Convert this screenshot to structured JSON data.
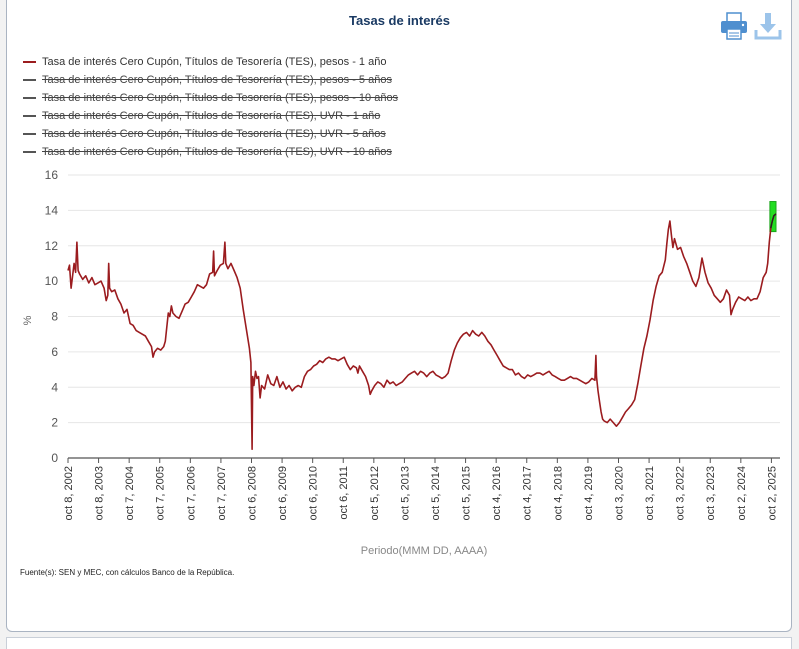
{
  "title": "Tasas de interés",
  "toolbar": {
    "print_icon": "printer-icon",
    "download_icon": "download-icon"
  },
  "source": "Fuente(s): SEN y MEC, con cálculos Banco de la República.",
  "chart_data": {
    "type": "line",
    "ylabel": "%",
    "xlabel": "Periodo(MMM DD, AAAA)",
    "ylim": [
      0,
      16
    ],
    "yticks": [
      0,
      2,
      4,
      6,
      8,
      10,
      12,
      14,
      16
    ],
    "grid": true,
    "legend_position": "top-left",
    "xlim": [
      2002.77,
      2025.92
    ],
    "x_ticks": [
      {
        "x": 2002.77,
        "label": "oct 8, 2002"
      },
      {
        "x": 2003.77,
        "label": "oct 8, 2003"
      },
      {
        "x": 2004.77,
        "label": "oct 7, 2004"
      },
      {
        "x": 2005.77,
        "label": "oct 7, 2005"
      },
      {
        "x": 2006.77,
        "label": "oct 7, 2006"
      },
      {
        "x": 2007.77,
        "label": "oct 7, 2007"
      },
      {
        "x": 2008.77,
        "label": "oct 6, 2008"
      },
      {
        "x": 2009.77,
        "label": "oct 6, 2009"
      },
      {
        "x": 2010.77,
        "label": "oct 6, 2010"
      },
      {
        "x": 2011.77,
        "label": "oct 6, 2011"
      },
      {
        "x": 2012.77,
        "label": "oct 5, 2012"
      },
      {
        "x": 2013.77,
        "label": "oct 5, 2013"
      },
      {
        "x": 2014.77,
        "label": "oct 5, 2014"
      },
      {
        "x": 2015.77,
        "label": "oct 5, 2015"
      },
      {
        "x": 2016.77,
        "label": "oct 4, 2016"
      },
      {
        "x": 2017.77,
        "label": "oct 4, 2017"
      },
      {
        "x": 2018.77,
        "label": "oct 4, 2018"
      },
      {
        "x": 2019.77,
        "label": "oct 4, 2019"
      },
      {
        "x": 2020.77,
        "label": "oct 3, 2020"
      },
      {
        "x": 2021.77,
        "label": "oct 3, 2021"
      },
      {
        "x": 2022.77,
        "label": "oct 3, 2022"
      },
      {
        "x": 2023.77,
        "label": "oct 3, 2023"
      },
      {
        "x": 2024.77,
        "label": "oct 2, 2024"
      },
      {
        "x": 2025.77,
        "label": "oct 2, 2025"
      }
    ],
    "series": [
      {
        "name": "Tasa de interés Cero Cupón, Títulos de Tesorería (TES), pesos - 1 año",
        "color": "#9b1c1f",
        "visible": true,
        "points": [
          [
            2002.77,
            10.6
          ],
          [
            2002.82,
            10.9
          ],
          [
            2002.87,
            9.6
          ],
          [
            2002.92,
            10.3
          ],
          [
            2002.97,
            11.0
          ],
          [
            2003.02,
            10.5
          ],
          [
            2003.06,
            12.2
          ],
          [
            2003.1,
            10.6
          ],
          [
            2003.15,
            10.4
          ],
          [
            2003.25,
            10.1
          ],
          [
            2003.35,
            10.3
          ],
          [
            2003.45,
            9.9
          ],
          [
            2003.55,
            10.2
          ],
          [
            2003.65,
            9.8
          ],
          [
            2003.75,
            9.9
          ],
          [
            2003.85,
            10.0
          ],
          [
            2003.95,
            9.6
          ],
          [
            2004.02,
            8.9
          ],
          [
            2004.07,
            9.2
          ],
          [
            2004.1,
            11.0
          ],
          [
            2004.13,
            9.6
          ],
          [
            2004.2,
            9.4
          ],
          [
            2004.3,
            9.5
          ],
          [
            2004.4,
            9.0
          ],
          [
            2004.5,
            8.7
          ],
          [
            2004.6,
            8.2
          ],
          [
            2004.7,
            8.4
          ],
          [
            2004.8,
            7.6
          ],
          [
            2004.9,
            7.5
          ],
          [
            2005.0,
            7.2
          ],
          [
            2005.1,
            7.1
          ],
          [
            2005.2,
            7.0
          ],
          [
            2005.3,
            6.9
          ],
          [
            2005.4,
            6.6
          ],
          [
            2005.5,
            6.3
          ],
          [
            2005.55,
            5.7
          ],
          [
            2005.6,
            6.0
          ],
          [
            2005.7,
            6.2
          ],
          [
            2005.8,
            6.1
          ],
          [
            2005.9,
            6.3
          ],
          [
            2005.95,
            6.6
          ],
          [
            2006.0,
            7.4
          ],
          [
            2006.05,
            8.2
          ],
          [
            2006.1,
            8.0
          ],
          [
            2006.15,
            8.6
          ],
          [
            2006.2,
            8.2
          ],
          [
            2006.3,
            8.0
          ],
          [
            2006.4,
            7.9
          ],
          [
            2006.5,
            8.3
          ],
          [
            2006.6,
            8.7
          ],
          [
            2006.7,
            8.8
          ],
          [
            2006.8,
            9.1
          ],
          [
            2006.9,
            9.4
          ],
          [
            2007.0,
            9.8
          ],
          [
            2007.1,
            9.7
          ],
          [
            2007.2,
            9.6
          ],
          [
            2007.3,
            9.8
          ],
          [
            2007.4,
            10.4
          ],
          [
            2007.5,
            10.5
          ],
          [
            2007.53,
            11.7
          ],
          [
            2007.56,
            10.3
          ],
          [
            2007.65,
            10.6
          ],
          [
            2007.75,
            10.9
          ],
          [
            2007.85,
            11.0
          ],
          [
            2007.9,
            12.2
          ],
          [
            2007.93,
            11.0
          ],
          [
            2008.0,
            10.7
          ],
          [
            2008.1,
            11.0
          ],
          [
            2008.2,
            10.6
          ],
          [
            2008.3,
            10.2
          ],
          [
            2008.4,
            9.6
          ],
          [
            2008.5,
            8.4
          ],
          [
            2008.6,
            7.3
          ],
          [
            2008.7,
            6.2
          ],
          [
            2008.75,
            5.4
          ],
          [
            2008.79,
            0.5
          ],
          [
            2008.81,
            4.6
          ],
          [
            2008.85,
            4.1
          ],
          [
            2008.9,
            4.9
          ],
          [
            2008.95,
            4.5
          ],
          [
            2009.0,
            4.6
          ],
          [
            2009.05,
            3.4
          ],
          [
            2009.1,
            4.1
          ],
          [
            2009.2,
            3.9
          ],
          [
            2009.3,
            4.7
          ],
          [
            2009.4,
            4.2
          ],
          [
            2009.5,
            4.1
          ],
          [
            2009.6,
            4.6
          ],
          [
            2009.7,
            4.0
          ],
          [
            2009.8,
            4.3
          ],
          [
            2009.9,
            3.9
          ],
          [
            2010.0,
            4.1
          ],
          [
            2010.1,
            3.8
          ],
          [
            2010.2,
            4.0
          ],
          [
            2010.3,
            4.1
          ],
          [
            2010.4,
            4.0
          ],
          [
            2010.5,
            4.6
          ],
          [
            2010.6,
            4.9
          ],
          [
            2010.7,
            5.0
          ],
          [
            2010.8,
            5.2
          ],
          [
            2010.9,
            5.3
          ],
          [
            2011.0,
            5.5
          ],
          [
            2011.1,
            5.4
          ],
          [
            2011.2,
            5.6
          ],
          [
            2011.3,
            5.7
          ],
          [
            2011.4,
            5.6
          ],
          [
            2011.5,
            5.6
          ],
          [
            2011.6,
            5.5
          ],
          [
            2011.7,
            5.6
          ],
          [
            2011.8,
            5.7
          ],
          [
            2011.9,
            5.3
          ],
          [
            2012.0,
            5.0
          ],
          [
            2012.1,
            5.2
          ],
          [
            2012.2,
            5.1
          ],
          [
            2012.25,
            4.8
          ],
          [
            2012.3,
            5.2
          ],
          [
            2012.4,
            4.9
          ],
          [
            2012.5,
            4.6
          ],
          [
            2012.6,
            4.1
          ],
          [
            2012.65,
            3.6
          ],
          [
            2012.7,
            3.8
          ],
          [
            2012.8,
            4.1
          ],
          [
            2012.9,
            4.3
          ],
          [
            2013.0,
            4.2
          ],
          [
            2013.1,
            4.0
          ],
          [
            2013.2,
            4.4
          ],
          [
            2013.3,
            4.2
          ],
          [
            2013.4,
            4.3
          ],
          [
            2013.5,
            4.1
          ],
          [
            2013.6,
            4.2
          ],
          [
            2013.7,
            4.3
          ],
          [
            2013.8,
            4.5
          ],
          [
            2013.9,
            4.7
          ],
          [
            2014.0,
            4.8
          ],
          [
            2014.1,
            4.9
          ],
          [
            2014.2,
            4.7
          ],
          [
            2014.3,
            4.9
          ],
          [
            2014.4,
            4.8
          ],
          [
            2014.5,
            4.6
          ],
          [
            2014.6,
            4.8
          ],
          [
            2014.7,
            4.9
          ],
          [
            2014.8,
            4.7
          ],
          [
            2014.9,
            4.6
          ],
          [
            2015.0,
            4.5
          ],
          [
            2015.1,
            4.6
          ],
          [
            2015.2,
            4.8
          ],
          [
            2015.3,
            5.5
          ],
          [
            2015.4,
            6.1
          ],
          [
            2015.5,
            6.5
          ],
          [
            2015.6,
            6.8
          ],
          [
            2015.7,
            7.0
          ],
          [
            2015.8,
            7.1
          ],
          [
            2015.9,
            6.9
          ],
          [
            2016.0,
            7.2
          ],
          [
            2016.1,
            7.0
          ],
          [
            2016.2,
            6.9
          ],
          [
            2016.3,
            7.1
          ],
          [
            2016.4,
            6.9
          ],
          [
            2016.5,
            6.6
          ],
          [
            2016.6,
            6.4
          ],
          [
            2016.7,
            6.1
          ],
          [
            2016.8,
            5.8
          ],
          [
            2016.9,
            5.5
          ],
          [
            2017.0,
            5.2
          ],
          [
            2017.1,
            5.1
          ],
          [
            2017.2,
            5.0
          ],
          [
            2017.3,
            5.0
          ],
          [
            2017.4,
            4.7
          ],
          [
            2017.5,
            4.8
          ],
          [
            2017.6,
            4.6
          ],
          [
            2017.7,
            4.5
          ],
          [
            2017.8,
            4.7
          ],
          [
            2017.9,
            4.6
          ],
          [
            2018.0,
            4.7
          ],
          [
            2018.1,
            4.8
          ],
          [
            2018.2,
            4.8
          ],
          [
            2018.3,
            4.7
          ],
          [
            2018.4,
            4.8
          ],
          [
            2018.5,
            4.9
          ],
          [
            2018.6,
            4.7
          ],
          [
            2018.7,
            4.6
          ],
          [
            2018.8,
            4.5
          ],
          [
            2018.9,
            4.4
          ],
          [
            2019.0,
            4.4
          ],
          [
            2019.1,
            4.5
          ],
          [
            2019.2,
            4.6
          ],
          [
            2019.3,
            4.5
          ],
          [
            2019.4,
            4.5
          ],
          [
            2019.5,
            4.4
          ],
          [
            2019.6,
            4.3
          ],
          [
            2019.7,
            4.2
          ],
          [
            2019.8,
            4.3
          ],
          [
            2019.9,
            4.5
          ],
          [
            2020.0,
            4.4
          ],
          [
            2020.03,
            5.8
          ],
          [
            2020.05,
            4.6
          ],
          [
            2020.1,
            3.8
          ],
          [
            2020.15,
            3.2
          ],
          [
            2020.2,
            2.6
          ],
          [
            2020.25,
            2.2
          ],
          [
            2020.3,
            2.1
          ],
          [
            2020.4,
            2.0
          ],
          [
            2020.5,
            2.2
          ],
          [
            2020.6,
            2.0
          ],
          [
            2020.7,
            1.8
          ],
          [
            2020.8,
            2.0
          ],
          [
            2020.9,
            2.3
          ],
          [
            2021.0,
            2.6
          ],
          [
            2021.1,
            2.8
          ],
          [
            2021.2,
            3.0
          ],
          [
            2021.3,
            3.3
          ],
          [
            2021.4,
            4.2
          ],
          [
            2021.5,
            5.2
          ],
          [
            2021.6,
            6.2
          ],
          [
            2021.7,
            6.9
          ],
          [
            2021.8,
            7.8
          ],
          [
            2021.9,
            8.9
          ],
          [
            2022.0,
            9.7
          ],
          [
            2022.1,
            10.3
          ],
          [
            2022.2,
            10.5
          ],
          [
            2022.3,
            11.2
          ],
          [
            2022.35,
            12.1
          ],
          [
            2022.4,
            12.9
          ],
          [
            2022.45,
            13.4
          ],
          [
            2022.5,
            12.6
          ],
          [
            2022.55,
            11.9
          ],
          [
            2022.6,
            12.4
          ],
          [
            2022.7,
            11.8
          ],
          [
            2022.8,
            11.9
          ],
          [
            2022.9,
            11.4
          ],
          [
            2023.0,
            11.0
          ],
          [
            2023.1,
            10.5
          ],
          [
            2023.2,
            10.0
          ],
          [
            2023.3,
            9.7
          ],
          [
            2023.4,
            10.2
          ],
          [
            2023.5,
            11.3
          ],
          [
            2023.6,
            10.5
          ],
          [
            2023.7,
            9.9
          ],
          [
            2023.8,
            9.6
          ],
          [
            2023.9,
            9.2
          ],
          [
            2024.0,
            9.0
          ],
          [
            2024.1,
            8.8
          ],
          [
            2024.2,
            9.0
          ],
          [
            2024.3,
            9.5
          ],
          [
            2024.4,
            9.2
          ],
          [
            2024.45,
            8.1
          ],
          [
            2024.5,
            8.4
          ],
          [
            2024.6,
            8.8
          ],
          [
            2024.7,
            9.1
          ],
          [
            2024.8,
            9.0
          ],
          [
            2024.9,
            8.9
          ],
          [
            2025.0,
            9.1
          ],
          [
            2025.1,
            8.9
          ],
          [
            2025.2,
            9.0
          ],
          [
            2025.3,
            9.0
          ],
          [
            2025.4,
            9.4
          ],
          [
            2025.5,
            10.2
          ],
          [
            2025.6,
            10.5
          ],
          [
            2025.65,
            11.0
          ],
          [
            2025.7,
            12.2
          ],
          [
            2025.75,
            13.0
          ],
          [
            2025.8,
            13.4
          ],
          [
            2025.85,
            13.7
          ],
          [
            2025.92,
            13.8
          ]
        ]
      },
      {
        "name": "Tasa de interés Cero Cupón, Títulos de Tesorería (TES), pesos - 5 años",
        "color": "#555555",
        "visible": false
      },
      {
        "name": "Tasa de interés Cero Cupón, Títulos de Tesorería (TES), pesos - 10 años",
        "color": "#555555",
        "visible": false
      },
      {
        "name": "Tasa de interés Cero Cupón, Títulos de Tesorería (TES), UVR - 1 año",
        "color": "#555555",
        "visible": false
      },
      {
        "name": "Tasa de interés Cero Cupón, Títulos de Tesorería (TES), UVR - 5 años",
        "color": "#555555",
        "visible": false
      },
      {
        "name": "Tasa de interés Cero Cupón, Títulos de Tesorería (TES), UVR - 10 años",
        "color": "#555555",
        "visible": false
      }
    ],
    "highlight": {
      "x_from": 2025.72,
      "x_to": 2025.92,
      "y_from": 12.8,
      "y_to": 14.5,
      "color": "#22dd22"
    }
  }
}
